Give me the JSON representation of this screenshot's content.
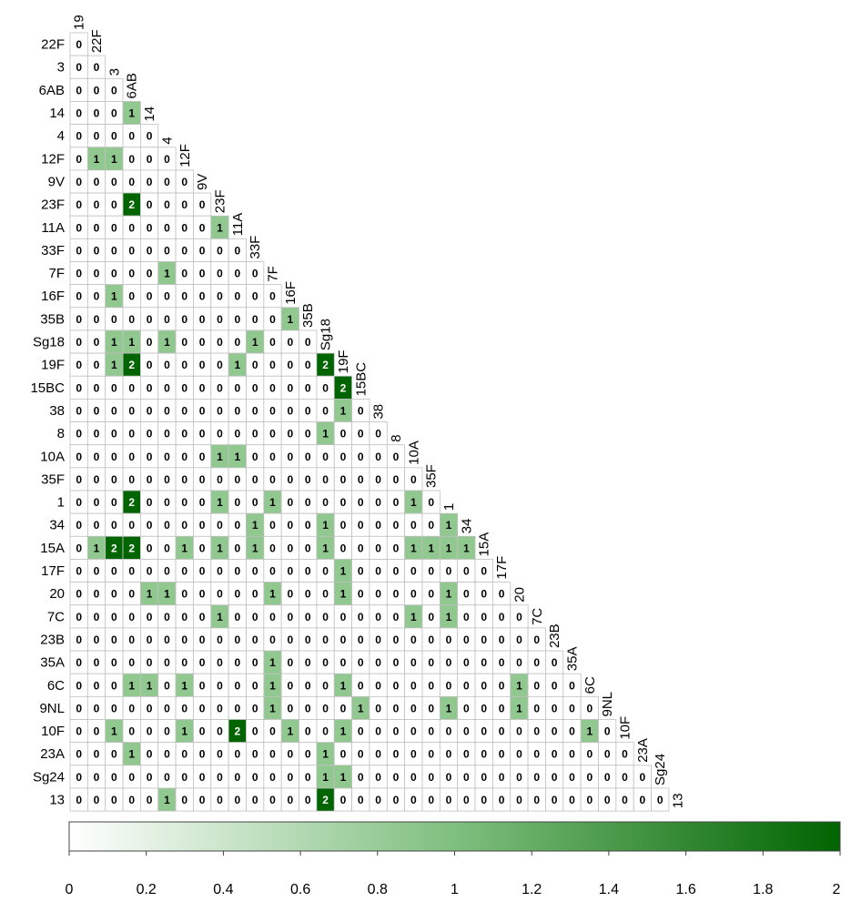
{
  "chart_data": {
    "type": "heatmap",
    "title": "",
    "labels": [
      "19",
      "22F",
      "3",
      "6AB",
      "14",
      "4",
      "12F",
      "9V",
      "23F",
      "11A",
      "33F",
      "7F",
      "16F",
      "35B",
      "Sg18",
      "19F",
      "15BC",
      "38",
      "8",
      "10A",
      "35F",
      "1",
      "34",
      "15A",
      "17F",
      "20",
      "7C",
      "23B",
      "35A",
      "6C",
      "9NL",
      "10F",
      "23A",
      "Sg24",
      "13"
    ],
    "row_labels": [
      "22F",
      "3",
      "6AB",
      "14",
      "4",
      "12F",
      "9V",
      "23F",
      "11A",
      "33F",
      "7F",
      "16F",
      "35B",
      "Sg18",
      "19F",
      "15BC",
      "38",
      "8",
      "10A",
      "35F",
      "1",
      "34",
      "15A",
      "17F",
      "20",
      "7C",
      "23B",
      "35A",
      "6C",
      "9NL",
      "10F",
      "23A",
      "Sg24",
      "13"
    ],
    "values": [
      [
        0
      ],
      [
        0,
        0
      ],
      [
        0,
        0,
        0
      ],
      [
        0,
        0,
        0,
        1
      ],
      [
        0,
        0,
        0,
        0,
        0
      ],
      [
        0,
        1,
        1,
        0,
        0,
        0
      ],
      [
        0,
        0,
        0,
        0,
        0,
        0,
        0
      ],
      [
        0,
        0,
        0,
        2,
        0,
        0,
        0,
        0
      ],
      [
        0,
        0,
        0,
        0,
        0,
        0,
        0,
        0,
        1
      ],
      [
        0,
        0,
        0,
        0,
        0,
        0,
        0,
        0,
        0,
        0
      ],
      [
        0,
        0,
        0,
        0,
        0,
        1,
        0,
        0,
        0,
        0,
        0
      ],
      [
        0,
        0,
        1,
        0,
        0,
        0,
        0,
        0,
        0,
        0,
        0,
        0
      ],
      [
        0,
        0,
        0,
        0,
        0,
        0,
        0,
        0,
        0,
        0,
        0,
        0,
        1
      ],
      [
        0,
        0,
        1,
        1,
        0,
        1,
        0,
        0,
        0,
        0,
        1,
        0,
        0,
        0
      ],
      [
        0,
        0,
        1,
        2,
        0,
        0,
        0,
        0,
        0,
        1,
        0,
        0,
        0,
        0,
        2
      ],
      [
        0,
        0,
        0,
        0,
        0,
        0,
        0,
        0,
        0,
        0,
        0,
        0,
        0,
        0,
        0,
        2
      ],
      [
        0,
        0,
        0,
        0,
        0,
        0,
        0,
        0,
        0,
        0,
        0,
        0,
        0,
        0,
        0,
        1,
        0
      ],
      [
        0,
        0,
        0,
        0,
        0,
        0,
        0,
        0,
        0,
        0,
        0,
        0,
        0,
        0,
        1,
        0,
        0,
        0
      ],
      [
        0,
        0,
        0,
        0,
        0,
        0,
        0,
        0,
        1,
        1,
        0,
        0,
        0,
        0,
        0,
        0,
        0,
        0,
        0
      ],
      [
        0,
        0,
        0,
        0,
        0,
        0,
        0,
        0,
        0,
        0,
        0,
        0,
        0,
        0,
        0,
        0,
        0,
        0,
        0,
        0
      ],
      [
        0,
        0,
        0,
        2,
        0,
        0,
        0,
        0,
        1,
        0,
        0,
        1,
        0,
        0,
        0,
        0,
        0,
        0,
        0,
        1,
        0
      ],
      [
        0,
        0,
        0,
        0,
        0,
        0,
        0,
        0,
        0,
        0,
        1,
        0,
        0,
        0,
        1,
        0,
        0,
        0,
        0,
        0,
        0,
        1
      ],
      [
        0,
        1,
        2,
        2,
        0,
        0,
        1,
        0,
        1,
        0,
        1,
        0,
        0,
        0,
        1,
        0,
        0,
        0,
        0,
        1,
        1,
        1,
        1
      ],
      [
        0,
        0,
        0,
        0,
        0,
        0,
        0,
        0,
        0,
        0,
        0,
        0,
        0,
        0,
        0,
        1,
        0,
        0,
        0,
        0,
        0,
        0,
        0,
        0
      ],
      [
        0,
        0,
        0,
        0,
        1,
        1,
        0,
        0,
        0,
        0,
        0,
        1,
        0,
        0,
        0,
        1,
        0,
        0,
        0,
        0,
        0,
        1,
        0,
        0,
        0
      ],
      [
        0,
        0,
        0,
        0,
        0,
        0,
        0,
        0,
        1,
        0,
        0,
        0,
        0,
        0,
        0,
        0,
        0,
        0,
        0,
        1,
        0,
        1,
        0,
        0,
        0,
        0
      ],
      [
        0,
        0,
        0,
        0,
        0,
        0,
        0,
        0,
        0,
        0,
        0,
        0,
        0,
        0,
        0,
        0,
        0,
        0,
        0,
        0,
        0,
        0,
        0,
        0,
        0,
        0,
        0
      ],
      [
        0,
        0,
        0,
        0,
        0,
        0,
        0,
        0,
        0,
        0,
        0,
        1,
        0,
        0,
        0,
        0,
        0,
        0,
        0,
        0,
        0,
        0,
        0,
        0,
        0,
        0,
        0,
        0
      ],
      [
        0,
        0,
        0,
        1,
        1,
        0,
        1,
        0,
        0,
        0,
        0,
        1,
        0,
        0,
        0,
        1,
        0,
        0,
        0,
        0,
        0,
        0,
        0,
        0,
        0,
        1,
        0,
        0,
        0
      ],
      [
        0,
        0,
        0,
        0,
        0,
        0,
        0,
        0,
        0,
        0,
        0,
        1,
        0,
        0,
        0,
        0,
        1,
        0,
        0,
        0,
        0,
        1,
        0,
        0,
        0,
        1,
        0,
        0,
        0,
        0
      ],
      [
        0,
        0,
        1,
        0,
        0,
        0,
        1,
        0,
        0,
        2,
        0,
        0,
        1,
        0,
        0,
        1,
        0,
        0,
        0,
        0,
        0,
        0,
        0,
        0,
        0,
        0,
        0,
        0,
        0,
        1,
        0
      ],
      [
        0,
        0,
        0,
        1,
        0,
        0,
        0,
        0,
        0,
        0,
        0,
        0,
        0,
        0,
        1,
        0,
        0,
        0,
        0,
        0,
        0,
        0,
        0,
        0,
        0,
        0,
        0,
        0,
        0,
        0,
        0,
        0
      ],
      [
        0,
        0,
        0,
        0,
        0,
        0,
        0,
        0,
        0,
        0,
        0,
        0,
        0,
        0,
        1,
        1,
        0,
        0,
        0,
        0,
        0,
        0,
        0,
        0,
        0,
        0,
        0,
        0,
        0,
        0,
        0,
        0,
        0
      ],
      [
        0,
        0,
        0,
        0,
        0,
        1,
        0,
        0,
        0,
        0,
        0,
        0,
        0,
        0,
        2,
        0,
        0,
        0,
        0,
        0,
        0,
        0,
        0,
        0,
        0,
        0,
        0,
        0,
        0,
        0,
        0,
        0,
        0,
        0
      ]
    ],
    "colorbar": {
      "min": 0,
      "max": 2,
      "ticks": [
        "0",
        "0.2",
        "0.4",
        "0.6",
        "0.8",
        "1",
        "1.2",
        "1.4",
        "1.6",
        "1.8",
        "2"
      ],
      "color_low": "#ffffff",
      "color_mid": "#7fbf7f",
      "color_high": "#006400"
    },
    "colors": {
      "zero": "#ffffff",
      "one": "#90c890",
      "two": "#006400",
      "grid": "#c0c0c0"
    },
    "legend": "bottom"
  }
}
